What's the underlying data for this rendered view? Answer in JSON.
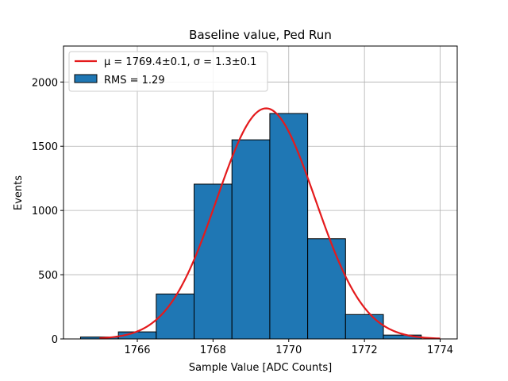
{
  "chart_data": {
    "type": "bar",
    "title": "Baseline value, Ped Run",
    "xlabel": "Sample Value [ADC Counts]",
    "ylabel": "Events",
    "xlim": [
      1764.05,
      1774.45
    ],
    "ylim": [
      0,
      2280
    ],
    "grid": true,
    "legend_position": "top-left",
    "x_ticks": [
      1766,
      1768,
      1770,
      1772,
      1774
    ],
    "y_ticks": [
      0,
      500,
      1000,
      1500,
      2000
    ],
    "bins": [
      {
        "x0": 1764.5,
        "x1": 1765.5,
        "value": 15
      },
      {
        "x0": 1765.5,
        "x1": 1766.5,
        "value": 55
      },
      {
        "x0": 1766.5,
        "x1": 1767.5,
        "value": 350
      },
      {
        "x0": 1767.5,
        "x1": 1768.5,
        "value": 1205
      },
      {
        "x0": 1768.5,
        "x1": 1769.5,
        "value": 1550
      },
      {
        "x0": 1769.5,
        "x1": 1770.5,
        "value": 1755
      },
      {
        "x0": 1770.5,
        "x1": 1771.5,
        "value": 780
      },
      {
        "x0": 1771.5,
        "x1": 1772.5,
        "value": 190
      },
      {
        "x0": 1772.5,
        "x1": 1773.5,
        "value": 30
      }
    ],
    "fit": {
      "type": "gaussian",
      "mu": 1769.4,
      "sigma": 1.3,
      "amplitude": 1795,
      "x_range": [
        1765.0,
        1774.0
      ]
    },
    "series": [
      {
        "name": "μ = 1769.4±0.1, σ = 1.3±0.1",
        "kind": "line",
        "color": "#e41a1c"
      },
      {
        "name": "RMS = 1.29",
        "kind": "bar",
        "color": "#1f77b4"
      }
    ],
    "colors": {
      "bar_fill": "#1f77b4",
      "bar_edge": "#000000",
      "fit_line": "#e41a1c",
      "grid": "#b0b0b0"
    }
  }
}
